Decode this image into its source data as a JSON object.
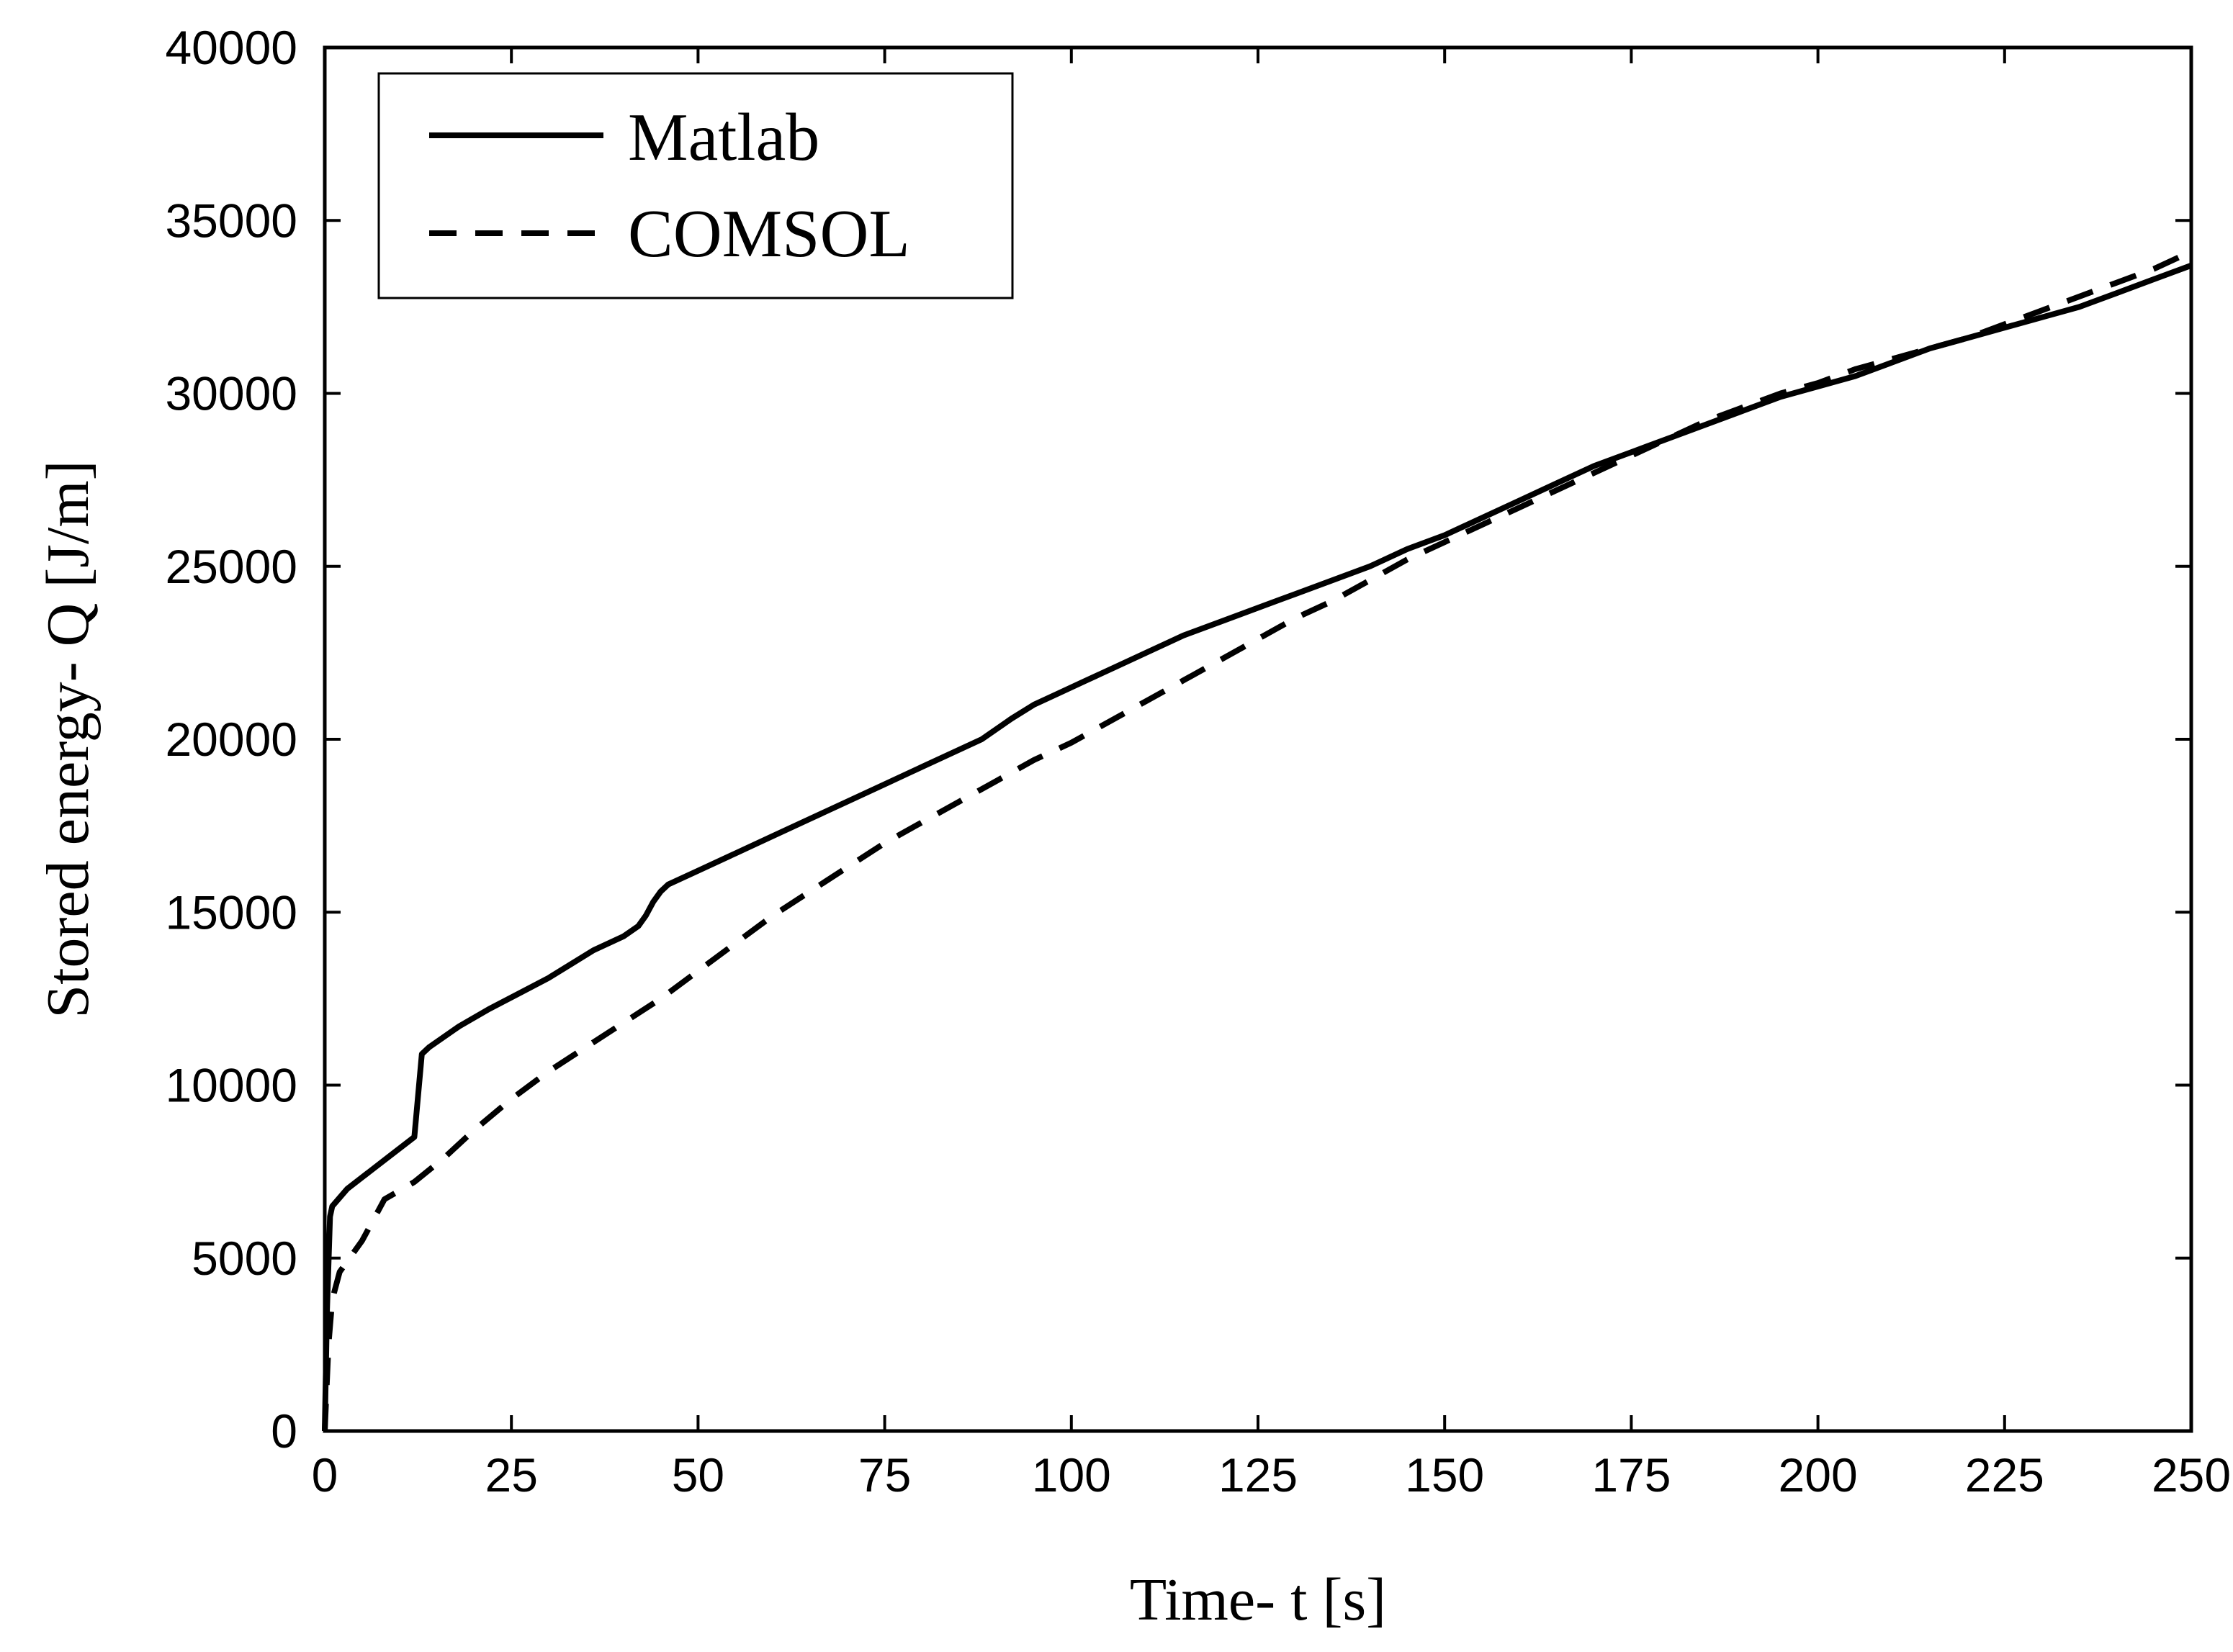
{
  "chart_data": {
    "type": "line",
    "title": "",
    "xlabel": "Time- t [s]",
    "ylabel": "Stored energy- Q [J/m]",
    "xlim": [
      0,
      250
    ],
    "ylim": [
      0,
      40000
    ],
    "x_ticks": [
      0,
      25,
      50,
      75,
      100,
      125,
      150,
      175,
      200,
      225,
      250
    ],
    "x_tick_labels": [
      "0",
      "25",
      "50",
      "75",
      "100",
      "125",
      "150",
      "175",
      "200",
      "225",
      "250"
    ],
    "y_ticks": [
      0,
      5000,
      10000,
      15000,
      20000,
      25000,
      30000,
      35000,
      40000
    ],
    "y_tick_labels": [
      "0",
      "5000",
      "10000",
      "15000",
      "20000",
      "25000",
      "30000",
      "35000",
      "40000"
    ],
    "grid": false,
    "legend_position": "top-left",
    "series": [
      {
        "name": "Matlab",
        "style": "solid",
        "color": "#000000",
        "x": [
          0,
          0.3,
          0.7,
          1,
          3,
          6,
          9,
          12,
          13,
          14,
          18,
          22,
          26,
          30,
          33,
          36,
          40,
          42,
          43,
          44,
          45,
          46,
          50,
          55,
          60,
          65,
          70,
          75,
          80,
          85,
          88,
          90,
          92,
          95,
          98,
          102,
          106,
          110,
          115,
          120,
          125,
          130,
          135,
          140,
          145,
          150,
          155,
          160,
          165,
          170,
          175,
          180,
          185,
          190,
          195,
          200,
          205,
          210,
          215,
          220,
          225,
          230,
          235,
          240,
          245,
          250
        ],
        "y": [
          0,
          3500,
          6200,
          6500,
          7000,
          7500,
          8000,
          8500,
          10900,
          11100,
          11700,
          12200,
          12650,
          13100,
          13500,
          13900,
          14300,
          14600,
          14900,
          15300,
          15600,
          15800,
          16200,
          16700,
          17200,
          17700,
          18200,
          18700,
          19200,
          19700,
          20000,
          20300,
          20600,
          21000,
          21300,
          21700,
          22100,
          22500,
          23000,
          23400,
          23800,
          24200,
          24600,
          25000,
          25500,
          25900,
          26400,
          26900,
          27400,
          27900,
          28300,
          28700,
          29100,
          29500,
          29900,
          30200,
          30500,
          30900,
          31300,
          31600,
          31900,
          32200,
          32500,
          32900,
          33300,
          33700
        ]
      },
      {
        "name": "COMSOL",
        "style": "dashed",
        "color": "#000000",
        "x": [
          0,
          0.5,
          1,
          2,
          3,
          5,
          8,
          12,
          16,
          20,
          25,
          30,
          35,
          40,
          45,
          50,
          55,
          60,
          65,
          70,
          75,
          80,
          85,
          90,
          95,
          100,
          105,
          110,
          115,
          120,
          125,
          130,
          135,
          140,
          145,
          150,
          155,
          160,
          165,
          170,
          175,
          180,
          185,
          190,
          195,
          200,
          205,
          210,
          215,
          220,
          225,
          230,
          235,
          240,
          245,
          250
        ],
        "y": [
          0,
          2500,
          3800,
          4600,
          4900,
          5500,
          6700,
          7200,
          7900,
          8700,
          9600,
          10400,
          11100,
          11800,
          12500,
          13300,
          14100,
          14900,
          15600,
          16300,
          17000,
          17600,
          18200,
          18800,
          19400,
          19900,
          20500,
          21100,
          21700,
          22300,
          22900,
          23500,
          24000,
          24600,
          25200,
          25700,
          26200,
          26700,
          27200,
          27700,
          28200,
          28700,
          29200,
          29600,
          30000,
          30300,
          30700,
          31000,
          31300,
          31600,
          32000,
          32400,
          32800,
          33200,
          33600,
          34100
        ]
      }
    ]
  }
}
